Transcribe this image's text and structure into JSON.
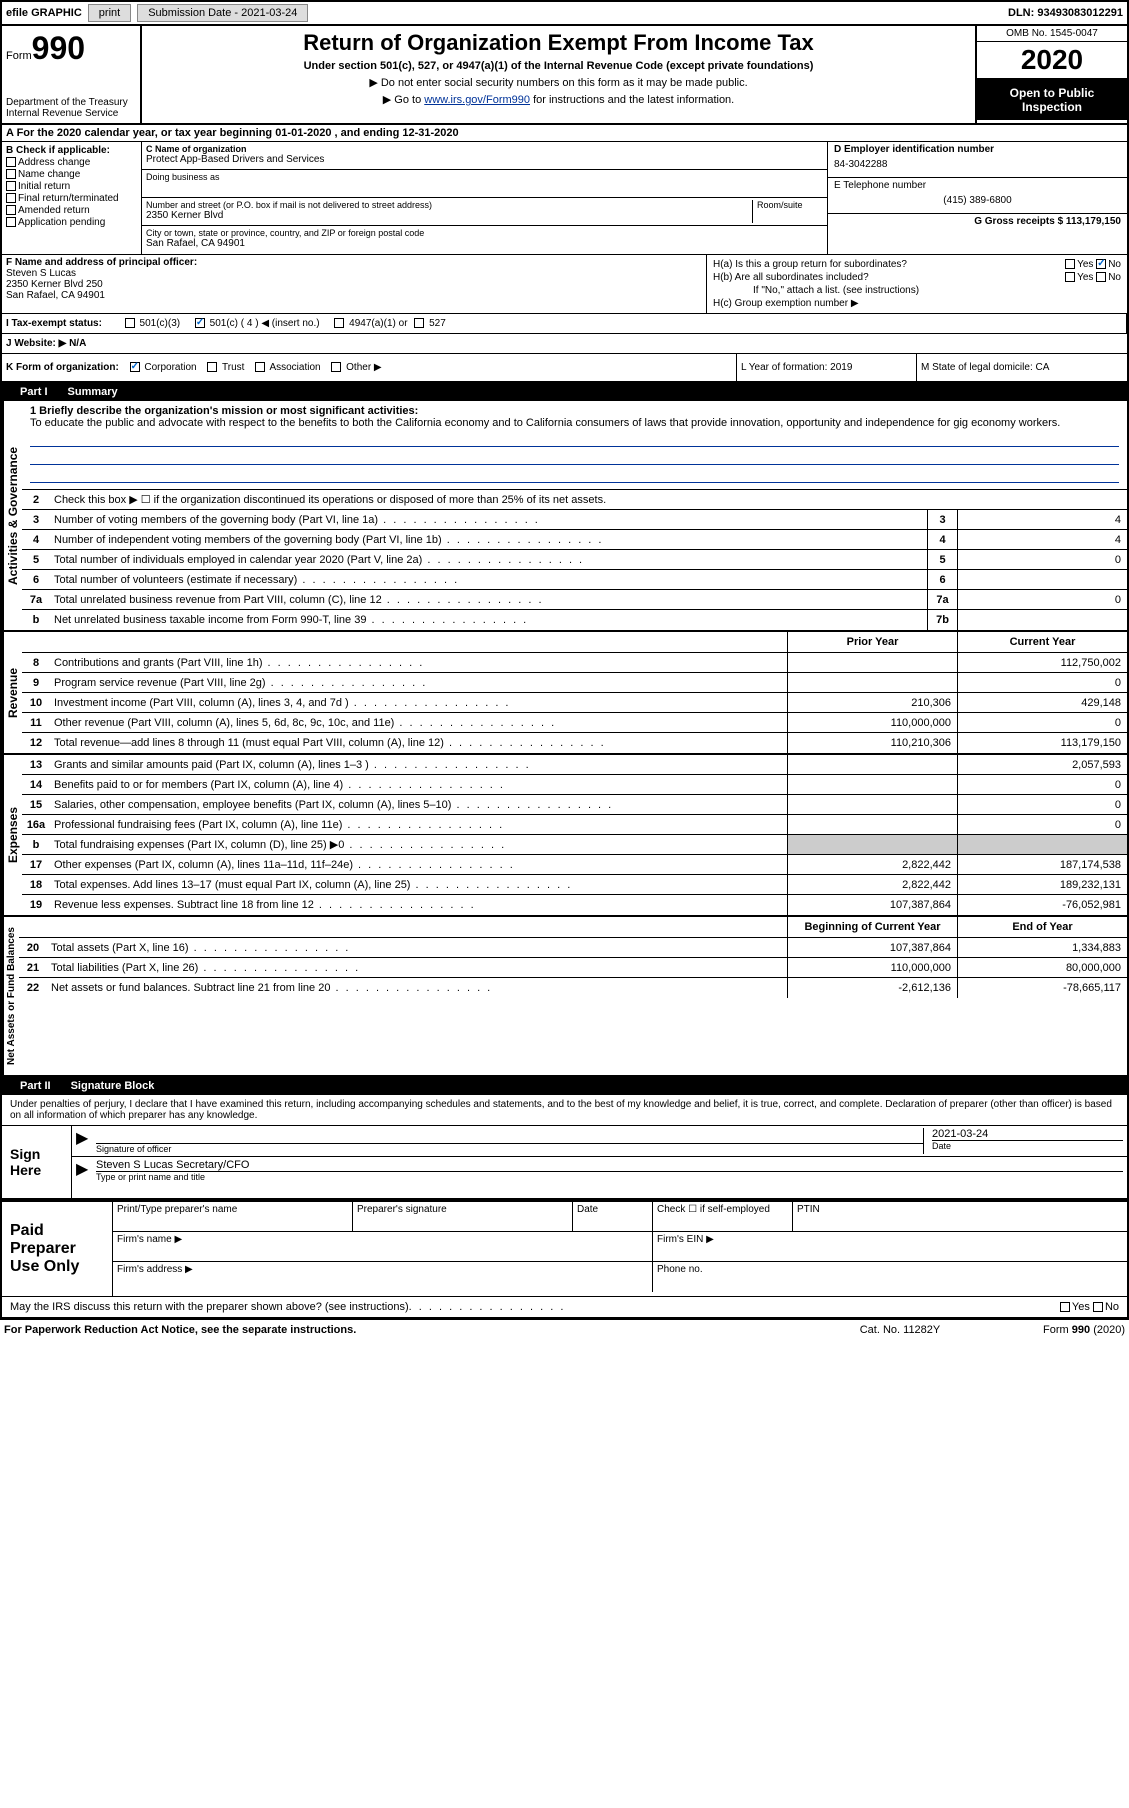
{
  "top_bar": {
    "efile": "efile GRAPHIC",
    "print_btn": "print",
    "sub_date_label": "Submission Date - 2021-03-24",
    "dln": "DLN: 93493083012291"
  },
  "header": {
    "form_label": "Form",
    "form_num": "990",
    "dept": "Department of the Treasury\nInternal Revenue Service",
    "title": "Return of Organization Exempt From Income Tax",
    "subtitle": "Under section 501(c), 527, or 4947(a)(1) of the Internal Revenue Code (except private foundations)",
    "arrow1": "▶ Do not enter social security numbers on this form as it may be made public.",
    "arrow2_pre": "▶ Go to ",
    "arrow2_link": "www.irs.gov/Form990",
    "arrow2_post": " for instructions and the latest information.",
    "omb": "OMB No. 1545-0047",
    "year": "2020",
    "open": "Open to Public Inspection"
  },
  "line_a": "A  For the 2020 calendar year, or tax year beginning 01-01-2020    , and ending 12-31-2020",
  "col_b": {
    "label": "B Check if applicable:",
    "opts": [
      "Address change",
      "Name change",
      "Initial return",
      "Final return/terminated",
      "Amended return",
      "Application pending"
    ]
  },
  "col_c": {
    "name_label": "C Name of organization",
    "name": "Protect App-Based Drivers and Services",
    "dba_label": "Doing business as",
    "addr_label": "Number and street (or P.O. box if mail is not delivered to street address)",
    "room_label": "Room/suite",
    "addr": "2350 Kerner Blvd",
    "city_label": "City or town, state or province, country, and ZIP or foreign postal code",
    "city": "San Rafael, CA  94901"
  },
  "col_de": {
    "d_label": "D Employer identification number",
    "ein": "84-3042288",
    "e_label": "E Telephone number",
    "phone": "(415) 389-6800",
    "g_label": "G Gross receipts $ 113,179,150"
  },
  "col_f": {
    "label": "F  Name and address of principal officer:",
    "name": "Steven S Lucas",
    "addr1": "2350 Kerner Blvd 250",
    "addr2": "San Rafael, CA  94901"
  },
  "col_h": {
    "ha": "H(a)  Is this a group return for subordinates?",
    "hb": "H(b)  Are all subordinates included?",
    "hb_note": "If \"No,\" attach a list. (see instructions)",
    "hc": "H(c)  Group exemption number ▶"
  },
  "line_i": {
    "label": "I    Tax-exempt status:",
    "opt1": "501(c)(3)",
    "opt2": "501(c) ( 4 ) ◀ (insert no.)",
    "opt3": "4947(a)(1) or",
    "opt4": "527"
  },
  "line_j": "J    Website: ▶   N/A",
  "line_k": "K Form of organization:",
  "k_opts": [
    "Corporation",
    "Trust",
    "Association",
    "Other ▶"
  ],
  "line_l": "L Year of formation: 2019",
  "line_m": "M State of legal domicile: CA",
  "part1": {
    "num": "Part I",
    "title": "Summary"
  },
  "mission": {
    "label": "1   Briefly describe the organization's mission or most significant activities:",
    "text": "To educate the public and advocate with respect to the benefits to both the California economy and to California consumers of laws that provide innovation, opportunity and independence for gig economy workers."
  },
  "side_labels": {
    "gov": "Activities & Governance",
    "rev": "Revenue",
    "exp": "Expenses",
    "net": "Net Assets or Fund Balances"
  },
  "gov_lines": [
    {
      "n": "2",
      "t": "Check this box ▶ ☐  if the organization discontinued its operations or disposed of more than 25% of its net assets."
    },
    {
      "n": "3",
      "t": "Number of voting members of the governing body (Part VI, line 1a)",
      "box": "3",
      "v": "4"
    },
    {
      "n": "4",
      "t": "Number of independent voting members of the governing body (Part VI, line 1b)",
      "box": "4",
      "v": "4"
    },
    {
      "n": "5",
      "t": "Total number of individuals employed in calendar year 2020 (Part V, line 2a)",
      "box": "5",
      "v": "0"
    },
    {
      "n": "6",
      "t": "Total number of volunteers (estimate if necessary)",
      "box": "6",
      "v": ""
    },
    {
      "n": "7a",
      "t": "Total unrelated business revenue from Part VIII, column (C), line 12",
      "box": "7a",
      "v": "0"
    },
    {
      "n": "b",
      "t": "Net unrelated business taxable income from Form 990-T, line 39",
      "box": "7b",
      "v": ""
    }
  ],
  "col_headers": {
    "prior": "Prior Year",
    "current": "Current Year"
  },
  "rev_lines": [
    {
      "n": "8",
      "t": "Contributions and grants (Part VIII, line 1h)",
      "p": "",
      "c": "112,750,002"
    },
    {
      "n": "9",
      "t": "Program service revenue (Part VIII, line 2g)",
      "p": "",
      "c": "0"
    },
    {
      "n": "10",
      "t": "Investment income (Part VIII, column (A), lines 3, 4, and 7d )",
      "p": "210,306",
      "c": "429,148"
    },
    {
      "n": "11",
      "t": "Other revenue (Part VIII, column (A), lines 5, 6d, 8c, 9c, 10c, and 11e)",
      "p": "110,000,000",
      "c": "0"
    },
    {
      "n": "12",
      "t": "Total revenue—add lines 8 through 11 (must equal Part VIII, column (A), line 12)",
      "p": "110,210,306",
      "c": "113,179,150"
    }
  ],
  "exp_lines": [
    {
      "n": "13",
      "t": "Grants and similar amounts paid (Part IX, column (A), lines 1–3 )",
      "p": "",
      "c": "2,057,593"
    },
    {
      "n": "14",
      "t": "Benefits paid to or for members (Part IX, column (A), line 4)",
      "p": "",
      "c": "0"
    },
    {
      "n": "15",
      "t": "Salaries, other compensation, employee benefits (Part IX, column (A), lines 5–10)",
      "p": "",
      "c": "0"
    },
    {
      "n": "16a",
      "t": "Professional fundraising fees (Part IX, column (A), line 11e)",
      "p": "",
      "c": "0"
    },
    {
      "n": "b",
      "t": "Total fundraising expenses (Part IX, column (D), line 25) ▶0",
      "p": "gray",
      "c": "gray"
    },
    {
      "n": "17",
      "t": "Other expenses (Part IX, column (A), lines 11a–11d, 11f–24e)",
      "p": "2,822,442",
      "c": "187,174,538"
    },
    {
      "n": "18",
      "t": "Total expenses. Add lines 13–17 (must equal Part IX, column (A), line 25)",
      "p": "2,822,442",
      "c": "189,232,131"
    },
    {
      "n": "19",
      "t": "Revenue less expenses. Subtract line 18 from line 12",
      "p": "107,387,864",
      "c": "-76,052,981"
    }
  ],
  "net_headers": {
    "begin": "Beginning of Current Year",
    "end": "End of Year"
  },
  "net_lines": [
    {
      "n": "20",
      "t": "Total assets (Part X, line 16)",
      "p": "107,387,864",
      "c": "1,334,883"
    },
    {
      "n": "21",
      "t": "Total liabilities (Part X, line 26)",
      "p": "110,000,000",
      "c": "80,000,000"
    },
    {
      "n": "22",
      "t": "Net assets or fund balances. Subtract line 21 from line 20",
      "p": "-2,612,136",
      "c": "-78,665,117"
    }
  ],
  "part2": {
    "num": "Part II",
    "title": "Signature Block"
  },
  "sig": {
    "decl": "Under penalties of perjury, I declare that I have examined this return, including accompanying schedules and statements, and to the best of my knowledge and belief, it is true, correct, and complete. Declaration of preparer (other than officer) is based on all information of which preparer has any knowledge.",
    "sign_here": "Sign Here",
    "sig_officer": "Signature of officer",
    "date_label": "Date",
    "date": "2021-03-24",
    "name_title": "Steven S Lucas  Secretary/CFO",
    "name_label": "Type or print name and title"
  },
  "prep": {
    "label": "Paid Preparer Use Only",
    "h1": "Print/Type preparer's name",
    "h2": "Preparer's signature",
    "h3": "Date",
    "h4": "Check ☐ if self-employed",
    "h5": "PTIN",
    "firm_name": "Firm's name    ▶",
    "firm_ein": "Firm's EIN ▶",
    "firm_addr": "Firm's address ▶",
    "phone": "Phone no."
  },
  "discuss": "May the IRS discuss this return with the preparer shown above? (see instructions)",
  "footer": {
    "left": "For Paperwork Reduction Act Notice, see the separate instructions.",
    "mid": "Cat. No. 11282Y",
    "right_pre": "Form ",
    "right_bold": "990",
    "right_post": " (2020)"
  }
}
